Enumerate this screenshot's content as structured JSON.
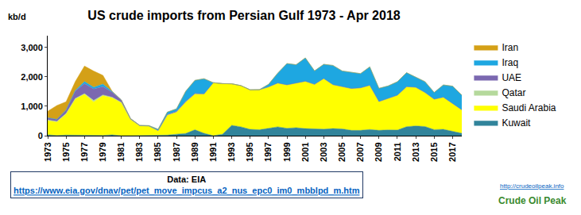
{
  "chart_data": {
    "type": "area",
    "title": "US crude imports from Persian Gulf 1973 - Apr 2018",
    "y_label": "kb/d",
    "source": "Data: EIA",
    "source_url": "https://www.eia.gov/dnav/pet/pet_move_impcus_a2_nus_epc0_im0_mbblpd_m.htm",
    "logo_url": "http://crudeoilpeak.info",
    "logo_text": "Crude Oil Peak",
    "stacked": true,
    "grid": false,
    "legend": "right",
    "x": [
      1973,
      1974,
      1975,
      1976,
      1977,
      1978,
      1979,
      1980,
      1981,
      1982,
      1983,
      1984,
      1985,
      1986,
      1987,
      1988,
      1989,
      1990,
      1991,
      1992,
      1993,
      1994,
      1995,
      1996,
      1997,
      1998,
      1999,
      2000,
      2001,
      2002,
      2003,
      2004,
      2005,
      2006,
      2007,
      2008,
      2009,
      2010,
      2011,
      2012,
      2013,
      2014,
      2015,
      2016,
      2017,
      2018
    ],
    "xlim": [
      1973,
      2018
    ],
    "xticks": [
      1973,
      1975,
      1977,
      1979,
      1981,
      1983,
      1985,
      1987,
      1989,
      1991,
      1993,
      1995,
      1997,
      1999,
      2001,
      2003,
      2005,
      2007,
      2009,
      2011,
      2013,
      2015,
      2017
    ],
    "ylim": [
      0,
      3400
    ],
    "yticks": [
      0,
      {
        "value": 1000,
        "label": "1,000"
      },
      {
        "value": 2000,
        "label": "2,000"
      },
      {
        "value": 3000,
        "label": "3,000"
      }
    ],
    "series": [
      {
        "name": "Iran",
        "color": "#d4a017",
        "values": [
          220,
          470,
          280,
          300,
          530,
          550,
          300,
          8,
          0,
          0,
          0,
          0,
          0,
          0,
          0,
          0,
          0,
          0,
          0,
          0,
          0,
          0,
          0,
          0,
          0,
          0,
          0,
          0,
          0,
          0,
          0,
          0,
          0,
          0,
          0,
          0,
          0,
          0,
          0,
          0,
          0,
          0,
          0,
          0,
          0,
          0
        ]
      },
      {
        "name": "Iraq",
        "color": "#1ea7e1",
        "values": [
          4,
          1,
          2,
          26,
          74,
          62,
          88,
          28,
          0,
          0,
          10,
          12,
          46,
          81,
          83,
          342,
          449,
          514,
          0,
          0,
          0,
          0,
          0,
          0,
          89,
          336,
          725,
          620,
          795,
          459,
          481,
          655,
          527,
          553,
          484,
          627,
          450,
          415,
          459,
          476,
          341,
          369,
          229,
          419,
          600,
          500
        ]
      },
      {
        "name": "UAE",
        "color": "#7b68b0",
        "values": [
          70,
          70,
          117,
          250,
          335,
          385,
          280,
          170,
          80,
          30,
          5,
          5,
          0,
          20,
          30,
          20,
          10,
          5,
          0,
          0,
          0,
          0,
          0,
          0,
          0,
          0,
          0,
          0,
          0,
          0,
          0,
          0,
          0,
          0,
          0,
          0,
          0,
          0,
          0,
          0,
          0,
          0,
          0,
          0,
          0,
          0
        ]
      },
      {
        "name": "Qatar",
        "color": "#b5d99c",
        "values": [
          20,
          20,
          20,
          20,
          20,
          50,
          20,
          20,
          5,
          0,
          0,
          0,
          0,
          0,
          0,
          0,
          0,
          0,
          0,
          0,
          0,
          0,
          0,
          0,
          0,
          0,
          0,
          0,
          0,
          0,
          0,
          0,
          0,
          0,
          0,
          0,
          0,
          0,
          0,
          0,
          0,
          0,
          0,
          0,
          0,
          0
        ]
      },
      {
        "name": "Saudi Arabia",
        "color": "#ffff00",
        "values": [
          486,
          461,
          715,
          1230,
          1380,
          1144,
          1356,
          1261,
          1129,
          552,
          337,
          325,
          168,
          680,
          751,
          1073,
          1224,
          1339,
          1802,
          1720,
          1414,
          1402,
          1344,
          1363,
          1407,
          1491,
          1478,
          1523,
          1611,
          1525,
          1726,
          1495,
          1445,
          1423,
          1447,
          1503,
          980,
          1082,
          1186,
          1361,
          1317,
          1159,
          1036,
          1092,
          939,
          800
        ]
      },
      {
        "name": "Kuwait",
        "color": "#31849b",
        "values": [
          30,
          5,
          20,
          15,
          30,
          5,
          10,
          27,
          0,
          0,
          0,
          0,
          5,
          20,
          50,
          75,
          200,
          80,
          0,
          50,
          350,
          300,
          215,
          200,
          250,
          300,
          250,
          270,
          240,
          220,
          220,
          240,
          230,
          180,
          180,
          210,
          180,
          195,
          190,
          305,
          330,
          310,
          205,
          215,
          145,
          80
        ]
      }
    ]
  }
}
